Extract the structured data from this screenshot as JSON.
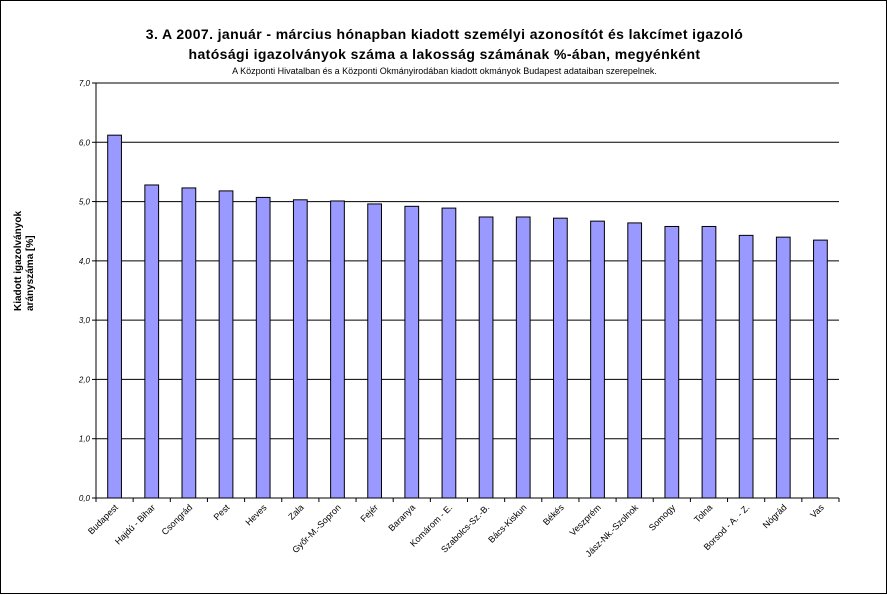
{
  "chart_data": {
    "type": "bar",
    "title_line1": "3. A 2007. január - március hónapban kiadott személyi azonosítót és lakcímet igazoló",
    "title_line2": "hatósági igazolványok száma a lakosság  számának %-ában, megyénként",
    "subtitle": "A Központi Hivatalban és a Központi Okmányirodában kiadott okmányok Budapest adataiban szerepelnek.",
    "ylabel_line1": "Kiadott igazolványok",
    "ylabel_line2": "arányszáma [%]",
    "xlabel": "",
    "ylim": [
      0,
      7
    ],
    "yticks": [
      "0,0",
      "1,0",
      "2,0",
      "3,0",
      "4,0",
      "5,0",
      "6,0",
      "7,0"
    ],
    "grid": true,
    "legend": "none",
    "bar_color": "#9999ff",
    "plot_bg": "#ffffff",
    "categories": [
      "Budapest",
      "Hajdú - Bihar",
      "Csongrád",
      "Pest",
      "Heves",
      "Zala",
      "Győr-M.-Sopron",
      "Fejér",
      "Baranya",
      "Komárom - E.",
      "Szabolcs-Sz.-B.",
      "Bács-Kiskun",
      "Békés",
      "Veszprém",
      "Jász-Nk.-Szolnok",
      "Somogy",
      "Tolna",
      "Borsod - A. - Z.",
      "Nógrád",
      "Vas"
    ],
    "values": [
      6.12,
      5.28,
      5.23,
      5.18,
      5.07,
      5.03,
      5.01,
      4.96,
      4.92,
      4.89,
      4.74,
      4.74,
      4.72,
      4.67,
      4.64,
      4.58,
      4.58,
      4.43,
      4.4,
      4.35
    ]
  }
}
